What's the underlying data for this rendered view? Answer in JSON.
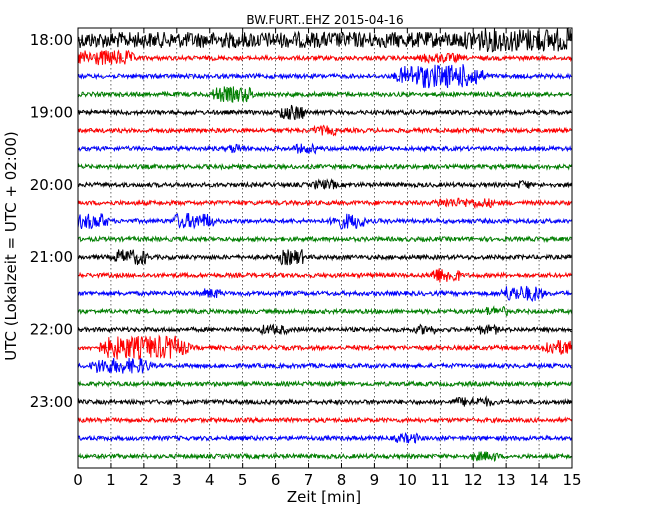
{
  "chart_data": {
    "type": "line",
    "title": "BW.FURT..EHZ 2015-04-16",
    "xlabel": "Zeit  [min]",
    "ylabel": "UTC (Lokalzeit = UTC + 02:00)",
    "xlim": [
      0,
      15
    ],
    "x_ticks": [
      "0",
      "1",
      "2",
      "3",
      "4",
      "5",
      "6",
      "7",
      "8",
      "9",
      "10",
      "11",
      "12",
      "13",
      "14",
      "15"
    ],
    "y_ticks": [
      "18:00",
      "19:00",
      "20:00",
      "21:00",
      "22:00",
      "23:00"
    ],
    "grid": true,
    "trace_interval_minutes": 15,
    "trace_colors": [
      "#000000",
      "#ff0000",
      "#0000ff",
      "#008000"
    ],
    "traces_per_hour": 4,
    "hours": [
      "18:00",
      "19:00",
      "20:00",
      "21:00",
      "22:00",
      "23:00"
    ],
    "events": [
      {
        "trace": "18:00",
        "x": [
          0,
          15
        ],
        "amplitude": "high"
      },
      {
        "trace": "18:00",
        "x": [
          12,
          15
        ],
        "amplitude": "very high"
      },
      {
        "trace": "18:15",
        "x": [
          0,
          1.5
        ],
        "amplitude": "high"
      },
      {
        "trace": "18:15",
        "x": [
          10.5,
          11.5
        ],
        "amplitude": "medium"
      },
      {
        "trace": "18:30",
        "x": [
          10,
          12
        ],
        "amplitude": "very high"
      },
      {
        "trace": "18:45",
        "x": [
          4.2,
          5.2
        ],
        "amplitude": "high"
      },
      {
        "trace": "19:00",
        "x": [
          6.2,
          6.8
        ],
        "amplitude": "high"
      },
      {
        "trace": "19:15",
        "x": [
          7.2,
          7.8
        ],
        "amplitude": "medium"
      },
      {
        "trace": "19:30",
        "x": [
          4.6,
          5.0
        ],
        "amplitude": "medium"
      },
      {
        "trace": "19:30",
        "x": [
          6.6,
          7.2
        ],
        "amplitude": "medium"
      },
      {
        "trace": "20:00",
        "x": [
          7.2,
          7.8
        ],
        "amplitude": "medium"
      },
      {
        "trace": "20:00",
        "x": [
          13.4,
          13.7
        ],
        "amplitude": "medium"
      },
      {
        "trace": "20:15",
        "x": [
          11,
          12.5
        ],
        "amplitude": "medium"
      },
      {
        "trace": "20:30",
        "x": [
          0,
          0.8
        ],
        "amplitude": "high"
      },
      {
        "trace": "20:30",
        "x": [
          3,
          4
        ],
        "amplitude": "high"
      },
      {
        "trace": "20:30",
        "x": [
          7.8,
          8.6
        ],
        "amplitude": "high"
      },
      {
        "trace": "21:00",
        "x": [
          1.2,
          2.0
        ],
        "amplitude": "high"
      },
      {
        "trace": "21:00",
        "x": [
          6.2,
          6.8
        ],
        "amplitude": "high"
      },
      {
        "trace": "21:15",
        "x": [
          10.8,
          11.5
        ],
        "amplitude": "high"
      },
      {
        "trace": "21:30",
        "x": [
          3.8,
          4.3
        ],
        "amplitude": "medium"
      },
      {
        "trace": "21:30",
        "x": [
          13,
          14
        ],
        "amplitude": "high"
      },
      {
        "trace": "21:45",
        "x": [
          12.4,
          13
        ],
        "amplitude": "medium"
      },
      {
        "trace": "22:00",
        "x": [
          5.6,
          6.3
        ],
        "amplitude": "medium"
      },
      {
        "trace": "22:00",
        "x": [
          10.3,
          10.8
        ],
        "amplitude": "medium"
      },
      {
        "trace": "22:00",
        "x": [
          12.2,
          12.7
        ],
        "amplitude": "medium"
      },
      {
        "trace": "22:15",
        "x": [
          1.0,
          3.0
        ],
        "amplitude": "very high"
      },
      {
        "trace": "22:15",
        "x": [
          14.2,
          15
        ],
        "amplitude": "high"
      },
      {
        "trace": "22:30",
        "x": [
          0.6,
          2.0
        ],
        "amplitude": "high"
      },
      {
        "trace": "23:00",
        "x": [
          11.5,
          12.5
        ],
        "amplitude": "medium"
      },
      {
        "trace": "23:30",
        "x": [
          9.7,
          10.3
        ],
        "amplitude": "medium"
      },
      {
        "trace": "23:45",
        "x": [
          12,
          12.7
        ],
        "amplitude": "medium"
      }
    ]
  }
}
